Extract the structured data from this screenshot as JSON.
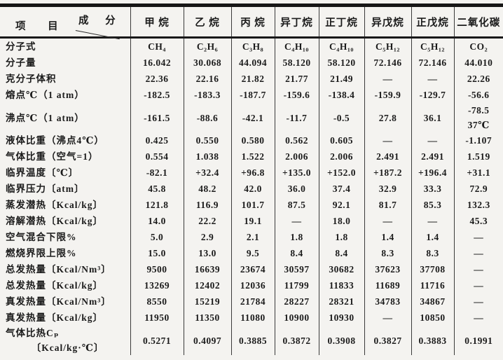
{
  "table": {
    "corner": {
      "item_label": "项 目",
      "component_label": "成 分"
    },
    "columns": [
      "甲 烷",
      "乙 烷",
      "丙 烷",
      "异丁烷",
      "正丁烷",
      "异戊烷",
      "正戊烷",
      "二氧化碳"
    ],
    "rows": [
      {
        "label": "分子式",
        "values": [
          "CH₄",
          "C₂H₆",
          "C₃H₈",
          "C₄H₁₀",
          "C₄H₁₀",
          "C₅H₁₂",
          "C₅H₁₂",
          "CO₂"
        ]
      },
      {
        "label": "分子量",
        "values": [
          "16.042",
          "30.068",
          "44.094",
          "58.120",
          "58.120",
          "72.146",
          "72.146",
          "44.010"
        ]
      },
      {
        "label": "克分子体积",
        "values": [
          "22.36",
          "22.16",
          "21.82",
          "21.77",
          "21.49",
          "—",
          "—",
          "22.26"
        ]
      },
      {
        "label": "熔点℃（1 atm）",
        "values": [
          "-182.5",
          "-183.3",
          "-187.7",
          "-159.6",
          "-138.4",
          "-159.9",
          "-129.7",
          "-56.6"
        ]
      },
      {
        "label": "沸点℃（1 atm）",
        "values": [
          "-161.5",
          "-88.6",
          "-42.1",
          "-11.7",
          "-0.5",
          "27.8",
          "36.1",
          "-78.5\n37℃"
        ]
      },
      {
        "label": "液体比重（沸点4℃）",
        "values": [
          "0.425",
          "0.550",
          "0.580",
          "0.562",
          "0.605",
          "—",
          "—",
          "-1.107"
        ]
      },
      {
        "label": "气体比重（空气=1）",
        "values": [
          "0.554",
          "1.038",
          "1.522",
          "2.006",
          "2.006",
          "2.491",
          "2.491",
          "1.519"
        ]
      },
      {
        "label": "临界温度〔℃〕",
        "values": [
          "-82.1",
          "+32.4",
          "+96.8",
          "+135.0",
          "+152.0",
          "+187.2",
          "+196.4",
          "+31.1"
        ]
      },
      {
        "label": "临界压力〔atm〕",
        "values": [
          "45.8",
          "48.2",
          "42.0",
          "36.0",
          "37.4",
          "32.9",
          "33.3",
          "72.9"
        ]
      },
      {
        "label": "蒸发潜热〔Kcal/kg〕",
        "values": [
          "121.8",
          "116.9",
          "101.7",
          "87.5",
          "92.1",
          "81.7",
          "85.3",
          "132.3"
        ]
      },
      {
        "label": "溶解潜热〔Kcal/kg〕",
        "values": [
          "14.0",
          "22.2",
          "19.1",
          "—",
          "18.0",
          "—",
          "—",
          "45.3"
        ]
      },
      {
        "label": "空气混合下限%",
        "values": [
          "5.0",
          "2.9",
          "2.1",
          "1.8",
          "1.8",
          "1.4",
          "1.4",
          "—"
        ]
      },
      {
        "label": "燃烧界限上限%",
        "values": [
          "15.0",
          "13.0",
          "9.5",
          "8.4",
          "8.4",
          "8.3",
          "8.3",
          "—"
        ]
      },
      {
        "label": "总发热量〔Kcal/Nm³〕",
        "values": [
          "9500",
          "16639",
          "23674",
          "30597",
          "30682",
          "37623",
          "37708",
          "—"
        ]
      },
      {
        "label": "总发热量〔Kcal/kg〕",
        "values": [
          "13269",
          "12402",
          "12036",
          "11799",
          "11833",
          "11689",
          "11716",
          "—"
        ]
      },
      {
        "label": "真发热量〔Kcal/Nm³〕",
        "values": [
          "8550",
          "15219",
          "21784",
          "28227",
          "28321",
          "34783",
          "34867",
          "—"
        ]
      },
      {
        "label": "真发热量〔Kcal/kg〕",
        "values": [
          "11950",
          "11350",
          "11080",
          "10900",
          "10930",
          "—",
          "10850",
          "—"
        ]
      },
      {
        "label": "气体比热Cₚ\n　　　〔Kcal/kg·℃〕",
        "values": [
          "0.5271",
          "0.4097",
          "0.3885",
          "0.3872",
          "0.3908",
          "0.3827",
          "0.3883",
          "0.1991"
        ]
      }
    ]
  }
}
